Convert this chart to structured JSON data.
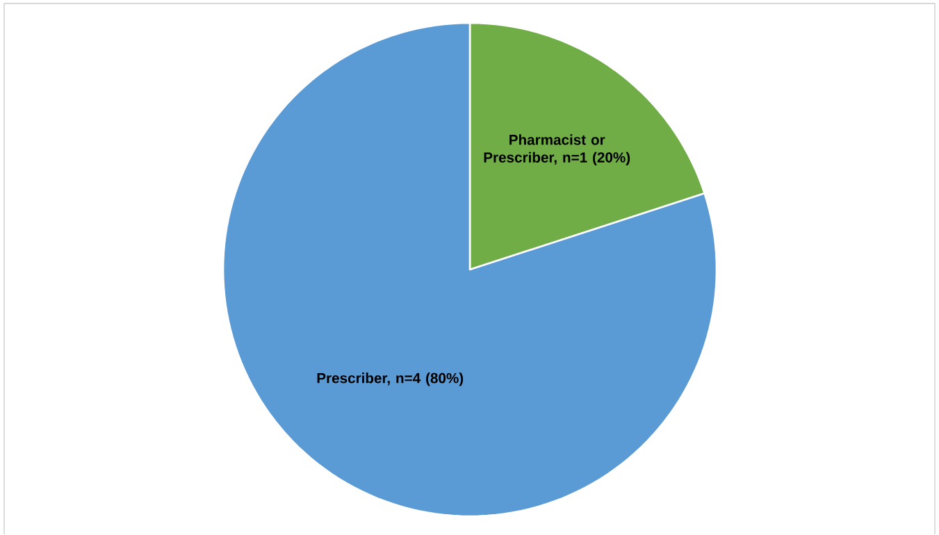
{
  "chart_data": {
    "type": "pie",
    "categories": [
      "Pharmacist or Prescriber, n=1 (20%)",
      "Prescriber, n=4 (80%)"
    ],
    "values": [
      20,
      80
    ],
    "colors": [
      "#70ad47",
      "#5b9bd5"
    ]
  }
}
